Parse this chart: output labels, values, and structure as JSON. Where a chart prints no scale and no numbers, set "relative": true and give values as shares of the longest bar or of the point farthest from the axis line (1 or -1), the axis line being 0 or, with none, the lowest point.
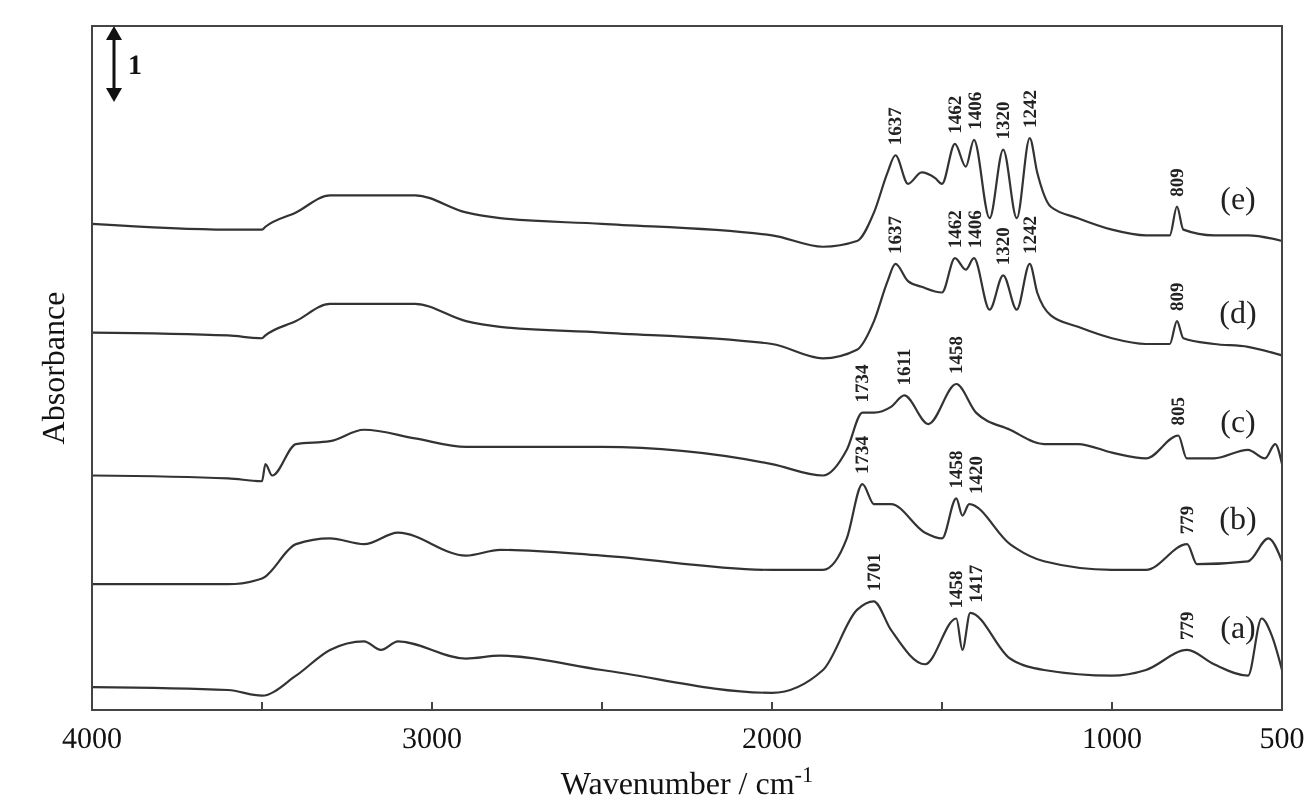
{
  "chart_data": {
    "type": "line",
    "relative": true,
    "xlabel": "Wavenumber / cm$^{-1}$",
    "ylabel": "Absorbance",
    "xlim": [
      4000,
      500
    ],
    "xticks": [
      4000,
      {
        "value": 3500,
        "label": null
      },
      3000,
      {
        "value": 2500,
        "label": null
      },
      2000,
      {
        "value": 1500,
        "label": null
      },
      1000,
      500
    ],
    "grid": false,
    "marker": "none",
    "line_style": "solid",
    "series": [
      {
        "name": "(e)",
        "color": "#333333",
        "x": [
          4000,
          3600,
          3500,
          3490,
          3400,
          3300,
          3200,
          3050,
          2900,
          2800,
          2500,
          2000,
          1850,
          1750,
          1700,
          1660,
          1637,
          1600,
          1560,
          1520,
          1500,
          1462,
          1430,
          1406,
          1360,
          1320,
          1280,
          1242,
          1220,
          1180,
          1100,
          1000,
          900,
          830,
          809,
          790,
          700,
          600,
          500
        ],
        "values": [
          0.85,
          0.84,
          0.84,
          0.845,
          0.87,
          0.9,
          0.9,
          0.9,
          0.87,
          0.86,
          0.85,
          0.83,
          0.81,
          0.82,
          0.87,
          0.94,
          0.97,
          0.92,
          0.94,
          0.93,
          0.92,
          0.99,
          0.95,
          0.997,
          0.86,
          0.98,
          0.86,
          1.0,
          0.94,
          0.88,
          0.86,
          0.84,
          0.83,
          0.83,
          0.88,
          0.84,
          0.83,
          0.83,
          0.82
        ]
      },
      {
        "name": "(d)",
        "color": "#333333",
        "x": [
          4000,
          3600,
          3500,
          3490,
          3400,
          3300,
          3200,
          3050,
          2900,
          2800,
          2500,
          2000,
          1850,
          1750,
          1700,
          1660,
          1637,
          1600,
          1560,
          1500,
          1462,
          1430,
          1406,
          1360,
          1320,
          1280,
          1242,
          1220,
          1180,
          1100,
          1000,
          900,
          830,
          809,
          790,
          700,
          600,
          500
        ],
        "values": [
          0.66,
          0.655,
          0.65,
          0.655,
          0.68,
          0.71,
          0.71,
          0.71,
          0.68,
          0.67,
          0.66,
          0.64,
          0.615,
          0.63,
          0.68,
          0.75,
          0.78,
          0.75,
          0.74,
          0.73,
          0.79,
          0.77,
          0.79,
          0.7,
          0.76,
          0.7,
          0.78,
          0.73,
          0.69,
          0.67,
          0.65,
          0.64,
          0.64,
          0.68,
          0.65,
          0.64,
          0.635,
          0.62
        ]
      },
      {
        "name": "(c)",
        "color": "#333333",
        "x": [
          4000,
          3600,
          3500,
          3490,
          3470,
          3400,
          3300,
          3200,
          3050,
          2900,
          2500,
          2000,
          1850,
          1780,
          1734,
          1700,
          1650,
          1611,
          1540,
          1458,
          1400,
          1300,
          1200,
          1100,
          1000,
          900,
          805,
          780,
          700,
          600,
          550,
          520,
          500
        ],
        "values": [
          0.41,
          0.405,
          0.4,
          0.43,
          0.41,
          0.465,
          0.47,
          0.49,
          0.475,
          0.46,
          0.46,
          0.43,
          0.41,
          0.455,
          0.52,
          0.52,
          0.53,
          0.55,
          0.5,
          0.57,
          0.52,
          0.49,
          0.465,
          0.465,
          0.45,
          0.44,
          0.48,
          0.44,
          0.44,
          0.455,
          0.44,
          0.465,
          0.43
        ]
      },
      {
        "name": "(b)",
        "color": "#333333",
        "x": [
          4000,
          3600,
          3500,
          3400,
          3300,
          3200,
          3100,
          2900,
          2800,
          2500,
          2000,
          1850,
          1780,
          1734,
          1700,
          1650,
          1550,
          1500,
          1458,
          1440,
          1420,
          1300,
          1200,
          1000,
          900,
          779,
          750,
          600,
          540,
          500
        ],
        "values": [
          0.22,
          0.22,
          0.23,
          0.29,
          0.3,
          0.29,
          0.31,
          0.27,
          0.28,
          0.27,
          0.245,
          0.245,
          0.3,
          0.395,
          0.36,
          0.36,
          0.31,
          0.3,
          0.37,
          0.34,
          0.36,
          0.29,
          0.26,
          0.245,
          0.245,
          0.29,
          0.255,
          0.26,
          0.3,
          0.26
        ]
      },
      {
        "name": "(a)",
        "color": "#333333",
        "x": [
          4000,
          3600,
          3500,
          3400,
          3300,
          3200,
          3150,
          3100,
          2900,
          2800,
          2500,
          2000,
          1850,
          1750,
          1701,
          1650,
          1550,
          1458,
          1440,
          1417,
          1300,
          1200,
          1000,
          900,
          779,
          700,
          600,
          560,
          530,
          500
        ],
        "values": [
          0.04,
          0.035,
          0.025,
          0.06,
          0.105,
          0.12,
          0.105,
          0.12,
          0.09,
          0.095,
          0.07,
          0.03,
          0.07,
          0.175,
          0.19,
          0.14,
          0.08,
          0.16,
          0.105,
          0.17,
          0.09,
          0.07,
          0.06,
          0.07,
          0.105,
          0.08,
          0.06,
          0.16,
          0.13,
          0.07
        ]
      }
    ],
    "annotations": [
      "1",
      {
        "text": "1637",
        "x": 1637,
        "y": 0.97
      },
      {
        "text": "1462",
        "x": 1462,
        "y": 0.99
      },
      {
        "text": "1406",
        "x": 1406,
        "y": 0.997
      },
      {
        "text": "1320",
        "x": 1320,
        "y": 0.98
      },
      {
        "text": "1242",
        "x": 1242,
        "y": 1.0
      },
      {
        "text": "809",
        "x": 809,
        "y": 0.88
      },
      {
        "text": "1637",
        "x": 1637,
        "y": 0.78
      },
      {
        "text": "1462",
        "x": 1462,
        "y": 0.79
      },
      {
        "text": "1406",
        "x": 1406,
        "y": 0.79
      },
      {
        "text": "1320",
        "x": 1320,
        "y": 0.76
      },
      {
        "text": "1242",
        "x": 1242,
        "y": 0.78
      },
      {
        "text": "809",
        "x": 809,
        "y": 0.68
      },
      {
        "text": "1734",
        "x": 1734,
        "y": 0.52
      },
      {
        "text": "1611",
        "x": 1611,
        "y": 0.55
      },
      {
        "text": "1458",
        "x": 1458,
        "y": 0.57
      },
      {
        "text": "805",
        "x": 805,
        "y": 0.48
      },
      {
        "text": "1734",
        "x": 1734,
        "y": 0.395
      },
      {
        "text": "1458",
        "x": 1458,
        "y": 0.37
      },
      {
        "text": "1420",
        "x": 1420,
        "y": 0.36
      },
      {
        "text": "779",
        "x": 779,
        "y": 0.29
      },
      {
        "text": "1701",
        "x": 1701,
        "y": 0.19
      },
      {
        "text": "1458",
        "x": 1458,
        "y": 0.16
      },
      {
        "text": "1417",
        "x": 1417,
        "y": 0.17
      },
      {
        "text": "779",
        "x": 779,
        "y": 0.105
      }
    ]
  }
}
